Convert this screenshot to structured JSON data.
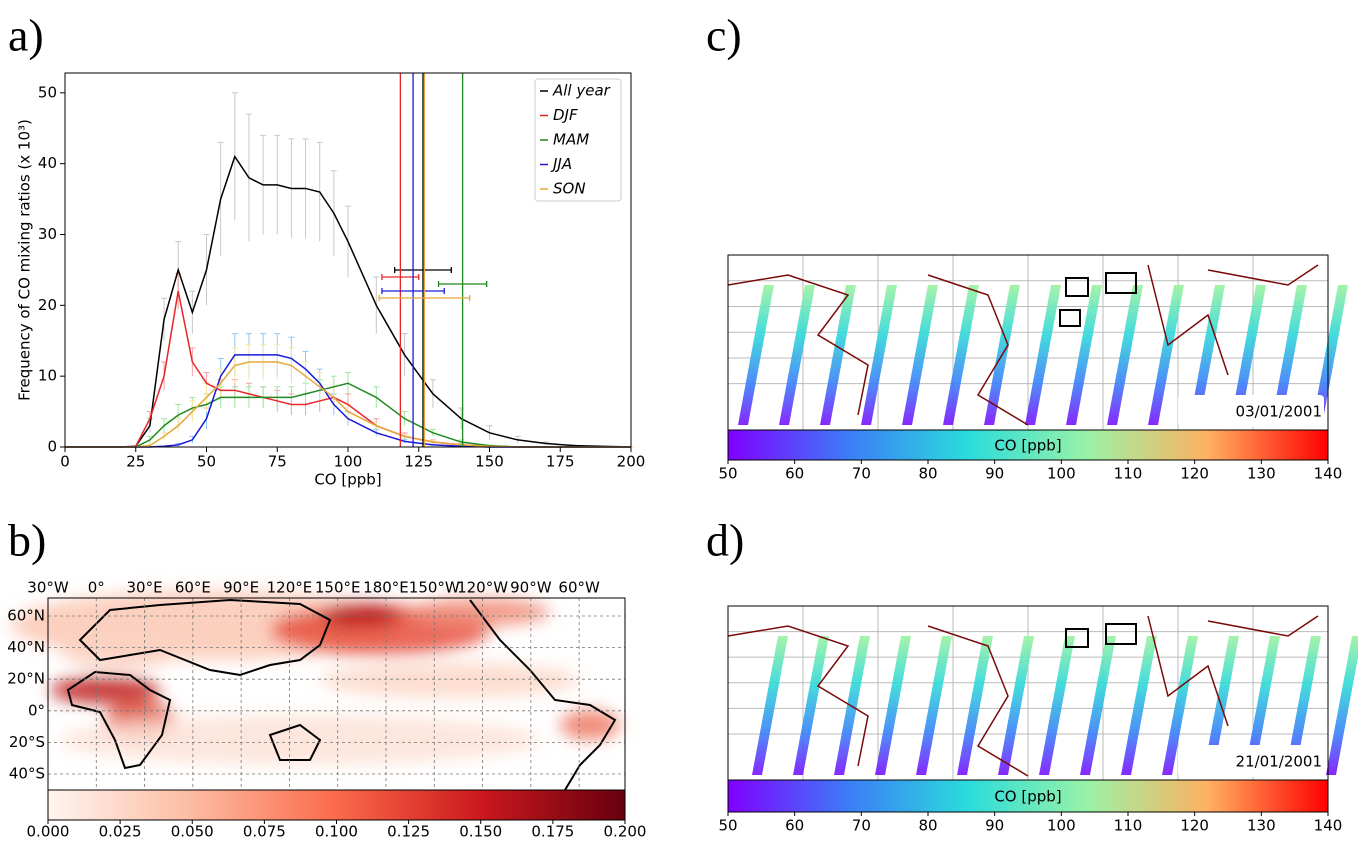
{
  "chart_data": [
    {
      "type": "line",
      "panel_label": "a)",
      "x_label": "CO [ppb]",
      "y_label": "Frequency of CO mixing ratios (x 10³)",
      "xlim": [
        0,
        200
      ],
      "ylim": [
        0,
        52.8
      ],
      "xticks": [
        0,
        25,
        50,
        75,
        100,
        125,
        150,
        175,
        200
      ],
      "yticks": [
        0,
        10,
        20,
        30,
        40,
        50
      ],
      "legend": "upper right",
      "x": [
        0,
        10,
        20,
        25,
        30,
        35,
        40,
        45,
        50,
        55,
        60,
        65,
        70,
        75,
        80,
        85,
        90,
        95,
        100,
        110,
        120,
        130,
        140,
        150,
        160,
        170,
        180,
        200
      ],
      "series": [
        {
          "name": "All year",
          "color": "#000000",
          "error_color": "#c8c8c8",
          "mean": 126.5,
          "mean_error": 10,
          "values": [
            0,
            0,
            0,
            0.1,
            3,
            18,
            25,
            19,
            25,
            35,
            41,
            38,
            37,
            37,
            36.5,
            36.5,
            36,
            33,
            29,
            20,
            13,
            7.5,
            4,
            2,
            1,
            0.5,
            0.2,
            0
          ],
          "errors": [
            0,
            0,
            0,
            0,
            1,
            3,
            4,
            3,
            5,
            8,
            9,
            9,
            7,
            7,
            7,
            7,
            7,
            6,
            5,
            4,
            3,
            2,
            1.5,
            1,
            0.5,
            0.2,
            0.1,
            0
          ]
        },
        {
          "name": "DJF",
          "color": "#e8262a",
          "error_color": "#f4a0a8",
          "mean": 118.5,
          "mean_error": 6.5,
          "values": [
            0,
            0,
            0,
            0.1,
            4,
            10,
            22,
            12,
            9,
            8,
            8,
            7.5,
            7,
            6.5,
            6,
            6,
            6.5,
            7,
            6,
            3,
            1.5,
            0.7,
            0.3,
            0.1,
            0,
            0,
            0,
            0
          ],
          "errors": [
            0,
            0,
            0,
            0,
            1,
            2,
            2.5,
            2,
            1.5,
            1.5,
            1.5,
            1.5,
            1.5,
            1.5,
            1.5,
            1.5,
            1.5,
            1.5,
            1.5,
            1,
            0.5,
            0.3,
            0.2,
            0.1,
            0,
            0,
            0,
            0
          ]
        },
        {
          "name": "MAM",
          "color": "#1f8a1f",
          "error_color": "#a0e6a0",
          "mean": 140.5,
          "mean_error": 8.5,
          "values": [
            0,
            0,
            0,
            0,
            1,
            3,
            4.5,
            5.5,
            6,
            7,
            7,
            7,
            7,
            7,
            7,
            7.5,
            8,
            8.5,
            9,
            7,
            4,
            2,
            0.7,
            0.2,
            0,
            0,
            0,
            0
          ],
          "errors": [
            0,
            0,
            0,
            0,
            0.5,
            1,
            1.5,
            1.5,
            1.5,
            1.5,
            1.5,
            1.5,
            1.5,
            1.5,
            1.5,
            1.5,
            1.5,
            1.5,
            1.5,
            1.5,
            1,
            0.5,
            0.3,
            0.1,
            0,
            0,
            0,
            0
          ]
        },
        {
          "name": "JJA",
          "color": "#1a1adc",
          "error_color": "#90c8f4",
          "mean": 123,
          "mean_error": 11,
          "values": [
            0,
            0,
            0,
            0,
            0,
            0.1,
            0.3,
            1,
            4,
            10,
            13,
            13,
            13,
            13,
            12.5,
            11,
            9,
            6,
            4,
            2,
            0.8,
            0.3,
            0.1,
            0,
            0,
            0,
            0,
            0
          ],
          "errors": [
            0,
            0,
            0,
            0,
            0,
            0,
            0.2,
            0.5,
            1.5,
            2.5,
            3,
            3,
            3,
            3,
            3,
            2.5,
            2,
            1.5,
            1,
            0.5,
            0.3,
            0.1,
            0,
            0,
            0,
            0,
            0,
            0
          ]
        },
        {
          "name": "SON",
          "color": "#e6a83c",
          "error_color": "#f4e6a0",
          "mean": 127,
          "mean_error": 16,
          "values": [
            0,
            0,
            0,
            0,
            0.2,
            1.5,
            3,
            5,
            7,
            9,
            11.5,
            12,
            12,
            12,
            11.5,
            10,
            8.5,
            7,
            5,
            3,
            1.5,
            0.7,
            0.3,
            0.1,
            0,
            0,
            0,
            0
          ],
          "errors": [
            0,
            0,
            0,
            0,
            0.2,
            0.5,
            1,
            1.5,
            2,
            2,
            2.5,
            2.5,
            2.5,
            2.5,
            2.5,
            2,
            2,
            1.5,
            1,
            0.5,
            0.3,
            0.2,
            0.1,
            0,
            0,
            0,
            0,
            0
          ]
        }
      ]
    },
    {
      "type": "heatmap",
      "panel_label": "b)",
      "lon_labels": [
        "30°W",
        "0°",
        "30°E",
        "60°E",
        "90°E",
        "120°E",
        "150°E",
        "180°E",
        "150°W",
        "120°W",
        "90°W",
        "60°W"
      ],
      "lat_labels": [
        "60°N",
        "40°N",
        "20°N",
        "0°",
        "20°S",
        "40°S"
      ],
      "clim": [
        0,
        0.2
      ],
      "cticks": [
        {
          "value": 0,
          "label": "0.000"
        },
        {
          "value": 0.025,
          "label": "0.025"
        },
        {
          "value": 0.05,
          "label": "0.050"
        },
        {
          "value": 0.075,
          "label": "0.075"
        },
        {
          "value": 0.1,
          "label": "0.100"
        },
        {
          "value": 0.125,
          "label": "0.125"
        },
        {
          "value": 0.15,
          "label": "0.150"
        },
        {
          "value": 0.175,
          "label": "0.175"
        },
        {
          "value": 0.2,
          "label": "0.200"
        }
      ]
    },
    {
      "type": "map",
      "panel_label": "c)",
      "date": "03/01/2001",
      "colorbar_label": "CO [ppb]",
      "clim": [
        50,
        140
      ],
      "cticks": [
        50,
        60,
        70,
        80,
        90,
        100,
        110,
        120,
        130,
        140
      ]
    },
    {
      "type": "map",
      "panel_label": "d)",
      "date": "21/01/2001",
      "colorbar_label": "CO [ppb]",
      "clim": [
        50,
        140
      ],
      "cticks": [
        50,
        60,
        70,
        80,
        90,
        100,
        110,
        120,
        130,
        140
      ]
    }
  ]
}
